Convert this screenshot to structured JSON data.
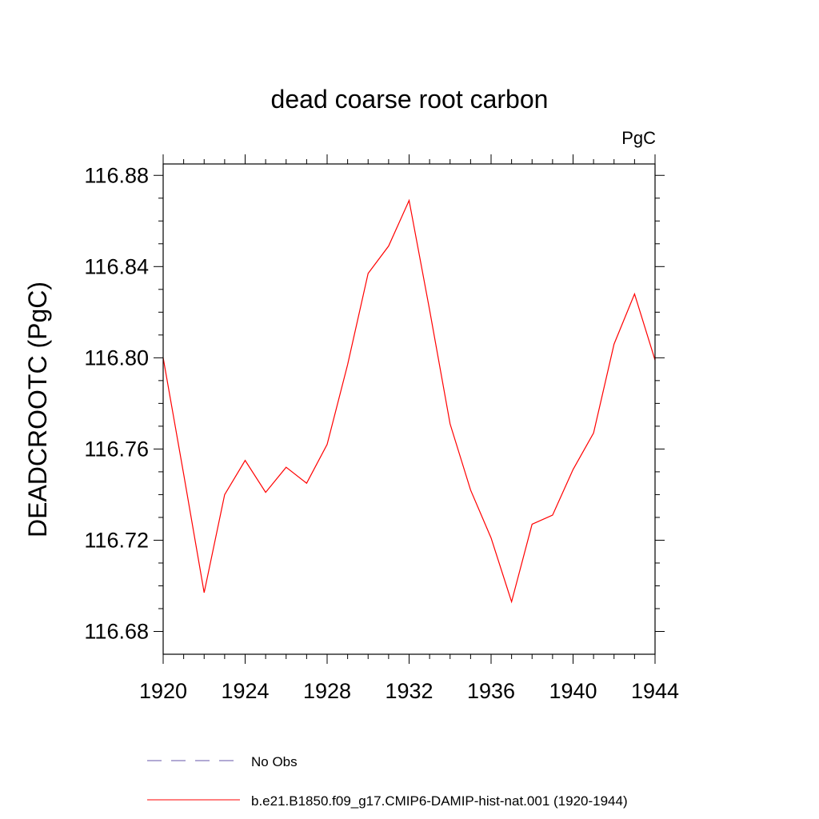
{
  "chart_data": {
    "type": "line",
    "title": "dead coarse root carbon",
    "units_label": "PgC",
    "ylabel": "DEADCROOTC  (PgC)",
    "xlabel": "",
    "xlim": [
      1920,
      1944
    ],
    "ylim": [
      116.67,
      116.885
    ],
    "x_ticks": [
      1920,
      1924,
      1928,
      1932,
      1936,
      1940,
      1944
    ],
    "x_tick_labels": [
      "1920",
      "1924",
      "1928",
      "1932",
      "1936",
      "1940",
      "1944"
    ],
    "y_ticks": [
      116.68,
      116.72,
      116.76,
      116.8,
      116.84,
      116.88
    ],
    "y_tick_labels": [
      "116.68",
      "116.72",
      "116.76",
      "116.80",
      "116.84",
      "116.88"
    ],
    "grid": false,
    "legend_placement": "bottom",
    "series": [
      {
        "name": "b.e21.B1850.f09_g17.CMIP6-DAMIP-hist-nat.001 (1920-1944)",
        "color": "#ff0000",
        "dash": "solid",
        "x": [
          1920,
          1921,
          1922,
          1923,
          1924,
          1925,
          1926,
          1927,
          1928,
          1929,
          1930,
          1931,
          1932,
          1933,
          1934,
          1935,
          1936,
          1937,
          1938,
          1939,
          1940,
          1941,
          1942,
          1943,
          1944
        ],
        "y": [
          116.8,
          116.749,
          116.697,
          116.74,
          116.755,
          116.741,
          116.752,
          116.745,
          116.762,
          116.797,
          116.837,
          116.849,
          116.869,
          116.821,
          116.771,
          116.742,
          116.721,
          116.693,
          116.727,
          116.731,
          116.751,
          116.767,
          116.806,
          116.828,
          116.799
        ]
      }
    ],
    "legend": [
      {
        "label": "No Obs",
        "color": "#6655aa",
        "dash": "dashed"
      },
      {
        "label": "b.e21.B1850.f09_g17.CMIP6-DAMIP-hist-nat.001 (1920-1944)",
        "color": "#ff0000",
        "dash": "solid"
      }
    ]
  }
}
